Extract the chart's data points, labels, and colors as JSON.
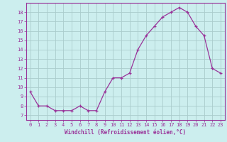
{
  "hours": [
    0,
    1,
    2,
    3,
    4,
    5,
    6,
    7,
    8,
    9,
    10,
    11,
    12,
    13,
    14,
    15,
    16,
    17,
    18,
    19,
    20,
    21,
    22,
    23
  ],
  "values": [
    9.5,
    8.0,
    8.0,
    7.5,
    7.5,
    7.5,
    8.0,
    7.5,
    7.5,
    9.5,
    11.0,
    11.0,
    11.5,
    14.0,
    15.5,
    16.5,
    17.5,
    18.0,
    18.5,
    18.0,
    16.5,
    15.5,
    12.0,
    11.5
  ],
  "line_color": "#993399",
  "marker_color": "#993399",
  "bg_color": "#cceeee",
  "grid_color": "#aacccc",
  "axis_color": "#993399",
  "tick_color": "#993399",
  "xlabel": "Windchill (Refroidissement éolien,°C)",
  "ylim": [
    6.5,
    19.0
  ],
  "xlim": [
    -0.5,
    23.5
  ],
  "yticks": [
    7,
    8,
    9,
    10,
    11,
    12,
    13,
    14,
    15,
    16,
    17,
    18
  ],
  "xticks": [
    0,
    1,
    2,
    3,
    4,
    5,
    6,
    7,
    8,
    9,
    10,
    11,
    12,
    13,
    14,
    15,
    16,
    17,
    18,
    19,
    20,
    21,
    22,
    23
  ],
  "xlabel_fontsize": 5.5,
  "tick_fontsize": 5.0,
  "linewidth": 0.9,
  "markersize": 3.5
}
